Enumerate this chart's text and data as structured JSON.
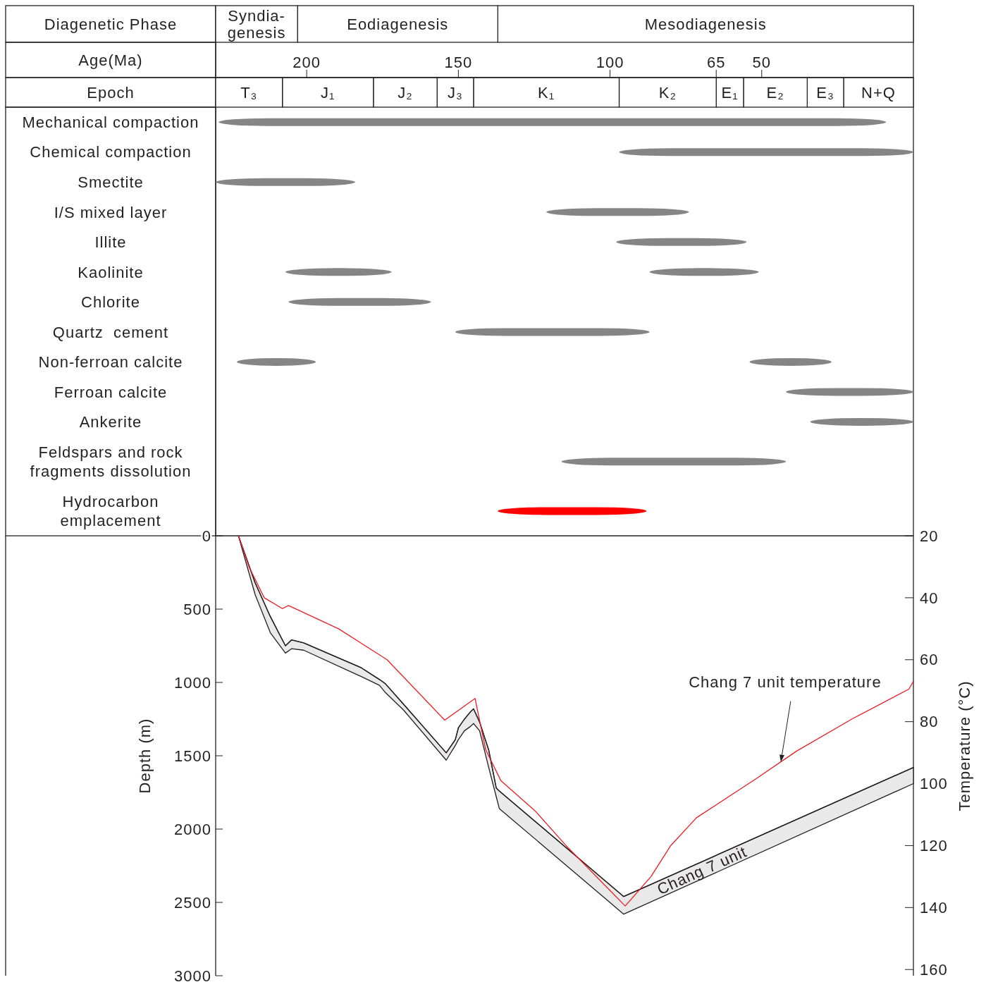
{
  "chart_data": [
    {
      "type": "bar",
      "orientation": "horizontal",
      "stacked": true,
      "categories": [
        "Diagenetic Phase"
      ],
      "xlim": [
        230,
        0
      ],
      "tick_labels": "y",
      "series": [
        {
          "name": "Mesodiagenesis",
          "color": "#ffffff",
          "values": [
            137
          ]
        },
        {
          "name": "Eodiagenesis",
          "color": "#ffffff",
          "values": [
            66
          ]
        },
        {
          "name": "Syndia-genesis",
          "color": "#ffffff",
          "values": [
            27
          ]
        }
      ]
    },
    {
      "type": "bar",
      "orientation": "horizontal",
      "stacked": true,
      "categories": [
        "Epoch"
      ],
      "xlabel": "Age(Ma)",
      "xlim": [
        230,
        0
      ],
      "xticks": [
        200,
        150,
        100,
        65,
        50
      ],
      "series": [
        {
          "name": "N+Q",
          "color": "#ffffff",
          "values": [
            23
          ]
        },
        {
          "name": "E₃",
          "color": "#ffffff",
          "values": [
            12
          ]
        },
        {
          "name": "E₂",
          "color": "#ffffff",
          "values": [
            21
          ]
        },
        {
          "name": "E₁",
          "color": "#ffffff",
          "values": [
            9
          ]
        },
        {
          "name": "K₂",
          "color": "#ffffff",
          "values": [
            32
          ]
        },
        {
          "name": "K₁",
          "color": "#ffffff",
          "values": [
            48
          ]
        },
        {
          "name": "J₃",
          "color": "#ffffff",
          "values": [
            12
          ]
        },
        {
          "name": "J₂",
          "color": "#ffffff",
          "values": [
            21
          ]
        },
        {
          "name": "J₁",
          "color": "#ffffff",
          "values": [
            30
          ]
        },
        {
          "name": "T₃",
          "color": "#ffffff",
          "values": [
            22
          ]
        }
      ]
    },
    {
      "type": "bar",
      "orientation": "horizontal",
      "xlim": [
        230,
        0
      ],
      "tick_labels": "y",
      "categories": [
        "Mechanical compaction",
        "Chemical compaction",
        "Smectite",
        "I/S mixed layer",
        "Illite",
        "Kaolinite",
        "Chlorite",
        "Quartz  cement",
        "Non-ferroan calcite",
        "Ferroan calcite",
        "Ankerite",
        "Feldspars and rock fragments dissolution",
        "Hydrocarbon emplacement"
      ],
      "series": [
        {
          "values": [
            220,
            97,
            46,
            47,
            43,
            35,
            47,
            64,
            26,
            42,
            34,
            74,
            49
          ],
          "base": [
            9,
            0,
            184,
            74,
            55,
            172,
            159,
            87,
            197,
            0,
            0,
            42,
            88
          ],
          "colors": [
            "#858585",
            "#858585",
            "#858585",
            "#858585",
            "#858585",
            "#858585",
            "#858585",
            "#858585",
            "#858585",
            "#858585",
            "#858585",
            "#858585",
            "#ff0000"
          ]
        },
        {
          "values": [
            null,
            null,
            null,
            null,
            null,
            36,
            null,
            null,
            27,
            null,
            null,
            null,
            null
          ],
          "base": [
            null,
            null,
            null,
            null,
            null,
            51,
            null,
            null,
            27,
            null,
            null,
            null,
            null
          ],
          "color": "#858585"
        }
      ]
    },
    {
      "type": "line",
      "xlim": [
        230,
        0
      ],
      "ylim": [
        3000,
        0
      ],
      "yticks": [
        0,
        500,
        1000,
        1500,
        2000,
        2500,
        3000
      ],
      "ylabel": "Depth (m)",
      "y2lim": [
        162,
        20
      ],
      "y2ticks": [
        20,
        40,
        60,
        80,
        100,
        120,
        140,
        160
      ],
      "y2label": "Temperature (°C)",
      "tick_labels": "y",
      "series": [
        {
          "name": "Chang 7 unit",
          "color": "#231f20",
          "x": [
            222.5,
            217,
            212,
            207,
            205,
            201,
            182,
            176,
            174,
            168,
            154,
            151,
            150,
            148,
            146,
            145,
            143,
            140,
            137.5,
            136.5,
            95.5,
            0
          ],
          "values": [
            0,
            320,
            550,
            750,
            710,
            730,
            900,
            980,
            1010,
            1150,
            1480,
            1390,
            1310,
            1250,
            1200,
            1180,
            1270,
            1460,
            1720,
            1740,
            2460,
            1580
          ],
          "lower": [
            0,
            320,
            550,
            750,
            710,
            730,
            900,
            980,
            1010,
            1150,
            1480,
            1390,
            1310,
            1250,
            1200,
            1180,
            1270,
            1460,
            1720,
            1740,
            2460,
            1580
          ],
          "upper": [
            0,
            400,
            660,
            800,
            770,
            780,
            960,
            1020,
            1070,
            1190,
            1530,
            1430,
            1390,
            1330,
            1300,
            1280,
            1330,
            1580,
            1780,
            1860,
            2580,
            1690
          ]
        },
        {
          "name": "Chang 7 unit temperature",
          "axis": "y2",
          "color": "#ed1c24",
          "x": [
            222.5,
            219,
            214,
            208,
            206,
            189.5,
            173.5,
            154.5,
            144.5,
            141,
            136,
            124.5,
            114.5,
            95,
            86.5,
            80,
            71.5,
            52,
            38.5,
            20,
            1.5,
            0
          ],
          "values": [
            20,
            30,
            40,
            43.5,
            42.5,
            50,
            60,
            79.5,
            72.5,
            89,
            99,
            109,
            120,
            139.5,
            130,
            120,
            111,
            98.5,
            89.5,
            79,
            69.5,
            67
          ]
        }
      ]
    }
  ]
}
